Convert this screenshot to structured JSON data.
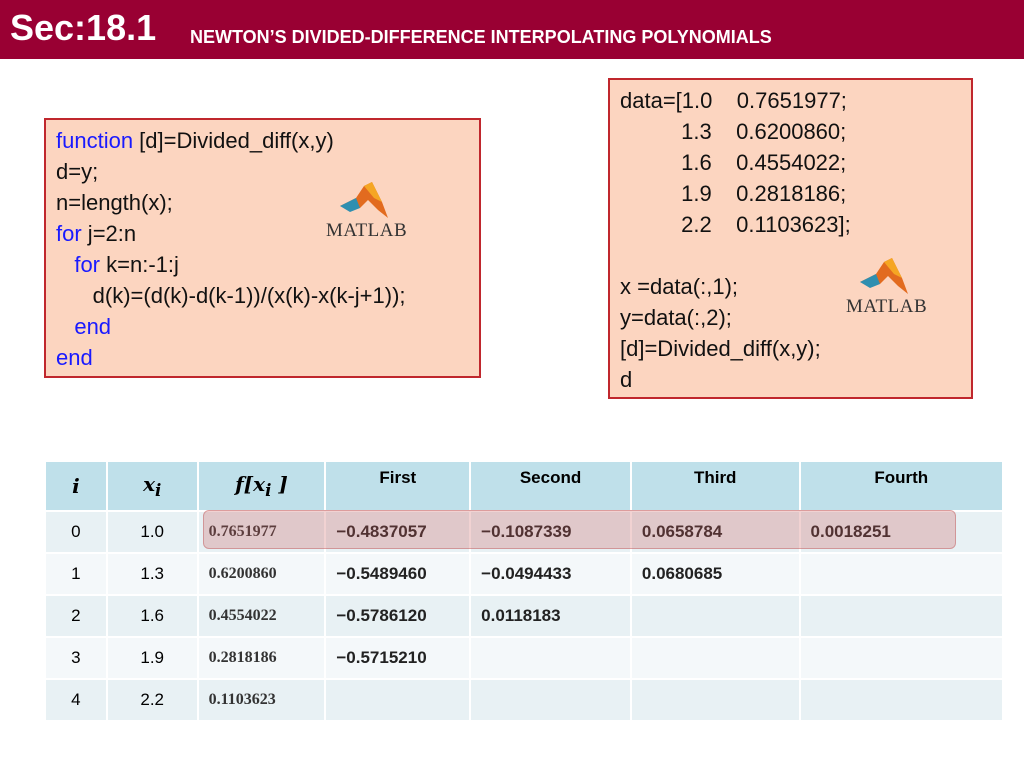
{
  "header": {
    "section": "Sec:18.1",
    "title": "NEWTON’S DIVIDED-DIFFERENCE INTERPOLATING  POLYNOMIALS"
  },
  "left_code": {
    "lines": [
      {
        "kw": "function",
        "text": " [d]=Divided_diff(x,y)"
      },
      {
        "kw": "",
        "text": "d=y;"
      },
      {
        "kw": "",
        "text": "n=length(x);"
      },
      {
        "kw": "for",
        "text": " j=2:n"
      },
      {
        "kw": "   for",
        "text": " k=n:-1:j"
      },
      {
        "kw": "",
        "text": "      d(k)=(d(k)-d(k-1))/(x(k)-x(k-j+1));"
      },
      {
        "kw": "   end",
        "text": ""
      },
      {
        "kw": "end",
        "text": ""
      }
    ],
    "logo_text": "MATLAB"
  },
  "right_code": {
    "lines": [
      "data=[1.0    0.7651977;",
      "          1.3    0.6200860;",
      "          1.6    0.4554022;",
      "          1.9    0.2818186;",
      "          2.2    0.1103623];",
      "",
      "x =data(:,1);",
      "y=data(:,2);",
      "[d]=Divided_diff(x,y);",
      "d"
    ],
    "logo_text": "MATLAB"
  },
  "table": {
    "headers": [
      "i",
      "x",
      "f[x",
      "First",
      "Second",
      "Third",
      "Fourth"
    ],
    "rows": [
      [
        "0",
        "1.0",
        "0.7651977",
        "−0.4837057",
        "−0.1087339",
        "0.0658784",
        "0.0018251"
      ],
      [
        "1",
        "1.3",
        "0.6200860",
        "−0.5489460",
        "−0.0494433",
        "0.0680685",
        ""
      ],
      [
        "2",
        "1.6",
        "0.4554022",
        "−0.5786120",
        "0.0118183",
        "",
        ""
      ],
      [
        "3",
        "1.9",
        "0.2818186",
        "−0.5715210",
        "",
        "",
        ""
      ],
      [
        "4",
        "2.2",
        "0.1103623",
        "",
        "",
        "",
        ""
      ]
    ]
  },
  "colors": {
    "header_bg": "#990033",
    "code_box_bg": "#fcd5c0",
    "code_box_border": "#c0272d",
    "keyword": "#1a1aff",
    "table_header_bg": "#bfe0ea"
  }
}
